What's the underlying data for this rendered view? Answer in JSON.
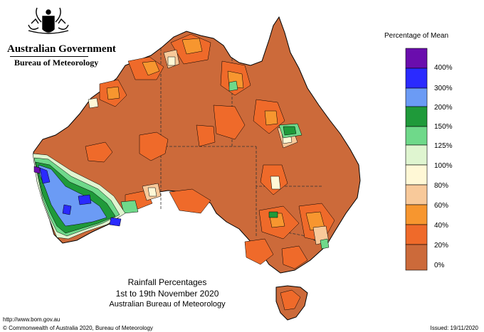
{
  "header": {
    "government": "Australian Government",
    "agency": "Bureau of Meteorology"
  },
  "legend": {
    "title": "Percentage of Mean",
    "levels": [
      {
        "label": "400%",
        "color": "#6a0dad"
      },
      {
        "label": "300%",
        "color": "#2a2aff"
      },
      {
        "label": "200%",
        "color": "#6b9bf5"
      },
      {
        "label": "150%",
        "color": "#1f9a3a"
      },
      {
        "label": "125%",
        "color": "#6fd98a"
      },
      {
        "label": "100%",
        "color": "#dff5d0"
      },
      {
        "label": "80%",
        "color": "#fff8d6"
      },
      {
        "label": "60%",
        "color": "#f8c99a"
      },
      {
        "label": "40%",
        "color": "#f7962f"
      },
      {
        "label": "20%",
        "color": "#ef6a2a"
      },
      {
        "label": "0%",
        "color": "#cc6a3a"
      }
    ]
  },
  "caption": {
    "title": "Rainfall Percentages",
    "period": "1st to 19th November 2020",
    "source": "Australian Bureau of Meteorology"
  },
  "footer": {
    "url": "http://www.bom.gov.au",
    "copyright": "© Commonwealth of Australia 2020, Bureau of Meteorology",
    "issued": "Issued: 19/11/2020"
  },
  "colors": {
    "base": "#cc6a3a",
    "low": "#ef6a2a",
    "mid": "#f7962f",
    "light": "#f8c99a",
    "cream": "#fff8d6",
    "green": "#1f9a3a",
    "lightgreen": "#6fd98a",
    "blue": "#6b9bf5",
    "darkblue": "#2a2aff",
    "purple": "#6a0dad"
  }
}
